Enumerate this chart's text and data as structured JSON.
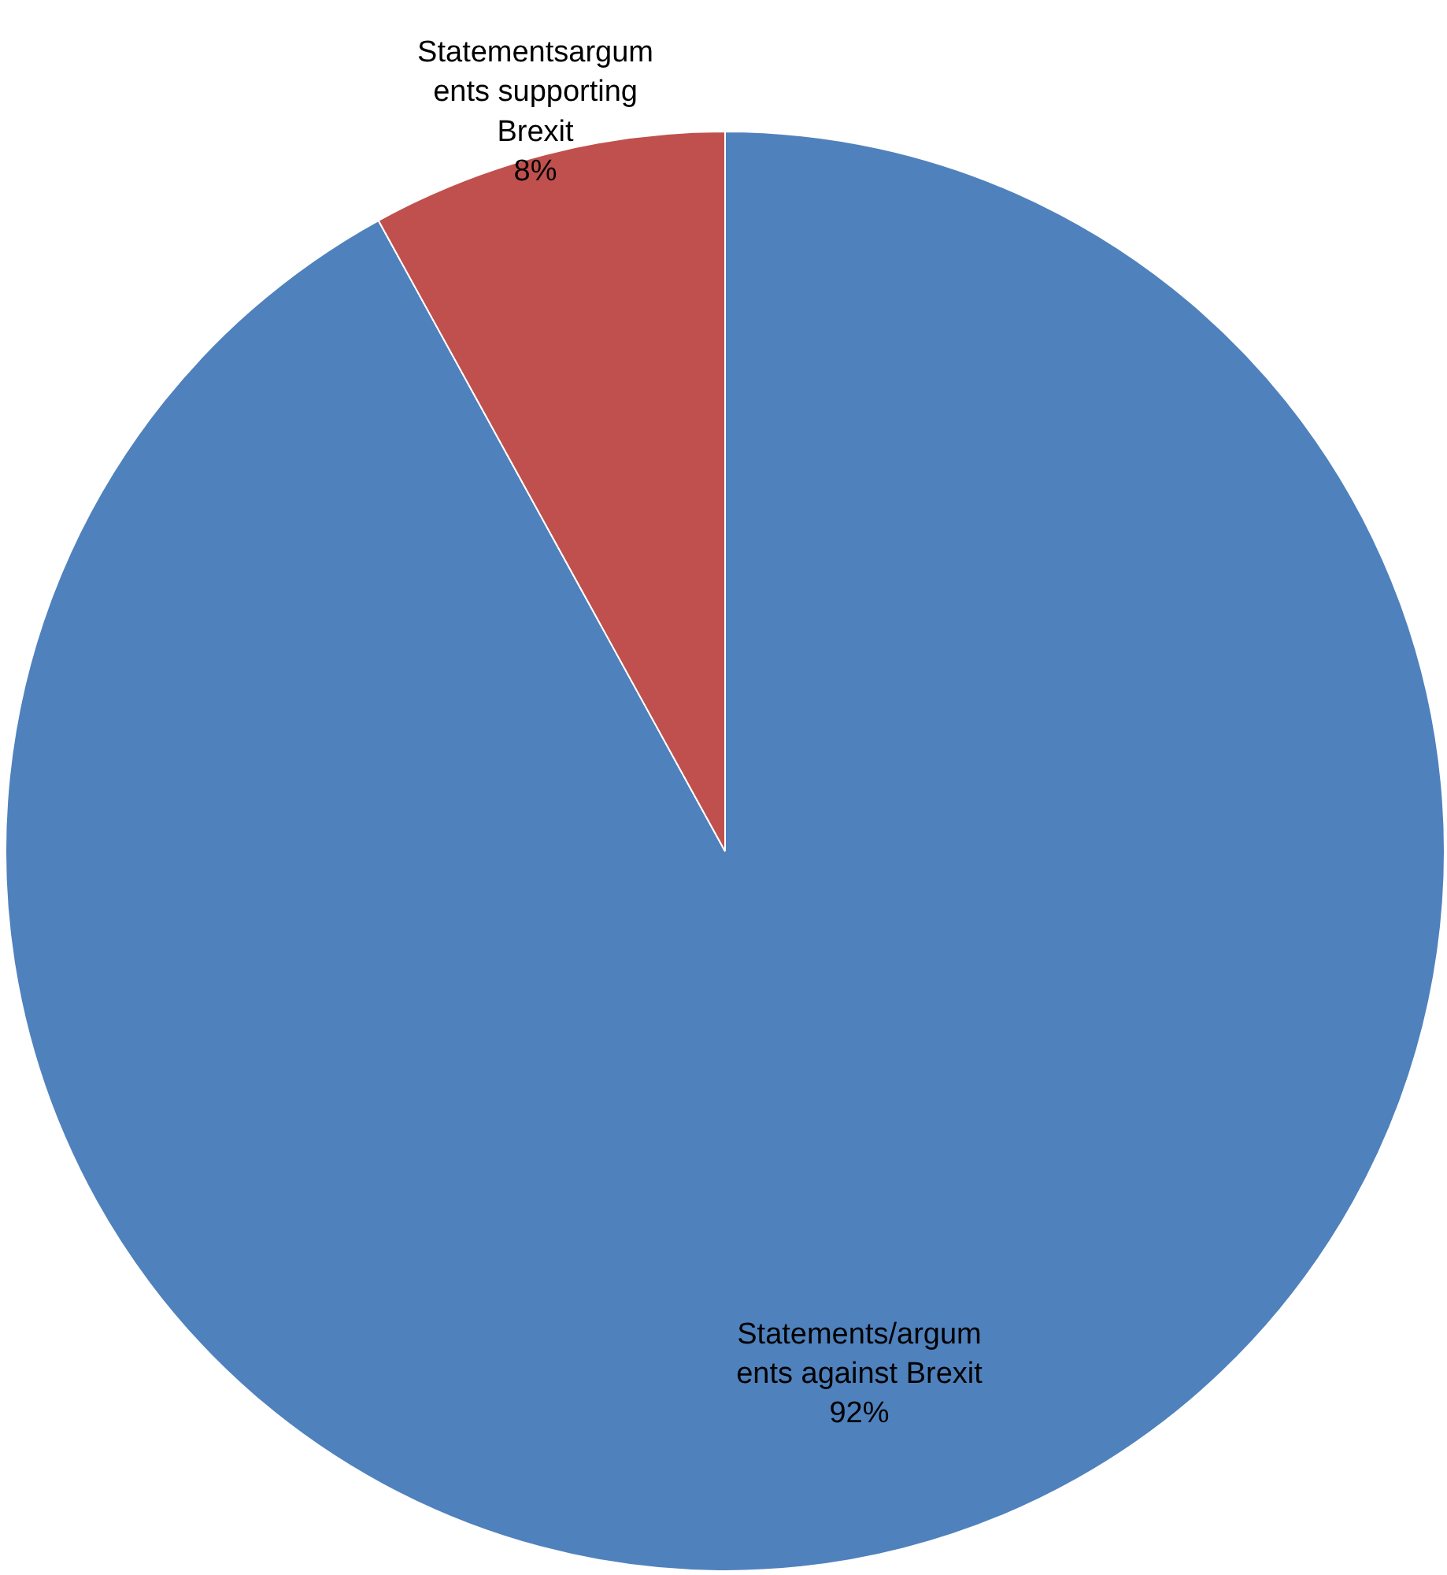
{
  "chart_data": {
    "type": "pie",
    "categories": [
      "Statements/argum\nents against Brexit",
      "Statementsargum\nents supporting\nBrexit"
    ],
    "values": [
      92,
      8
    ],
    "colors": [
      "#4f81bd",
      "#c0504d"
    ],
    "value_labels": [
      "92%",
      "8%"
    ]
  }
}
